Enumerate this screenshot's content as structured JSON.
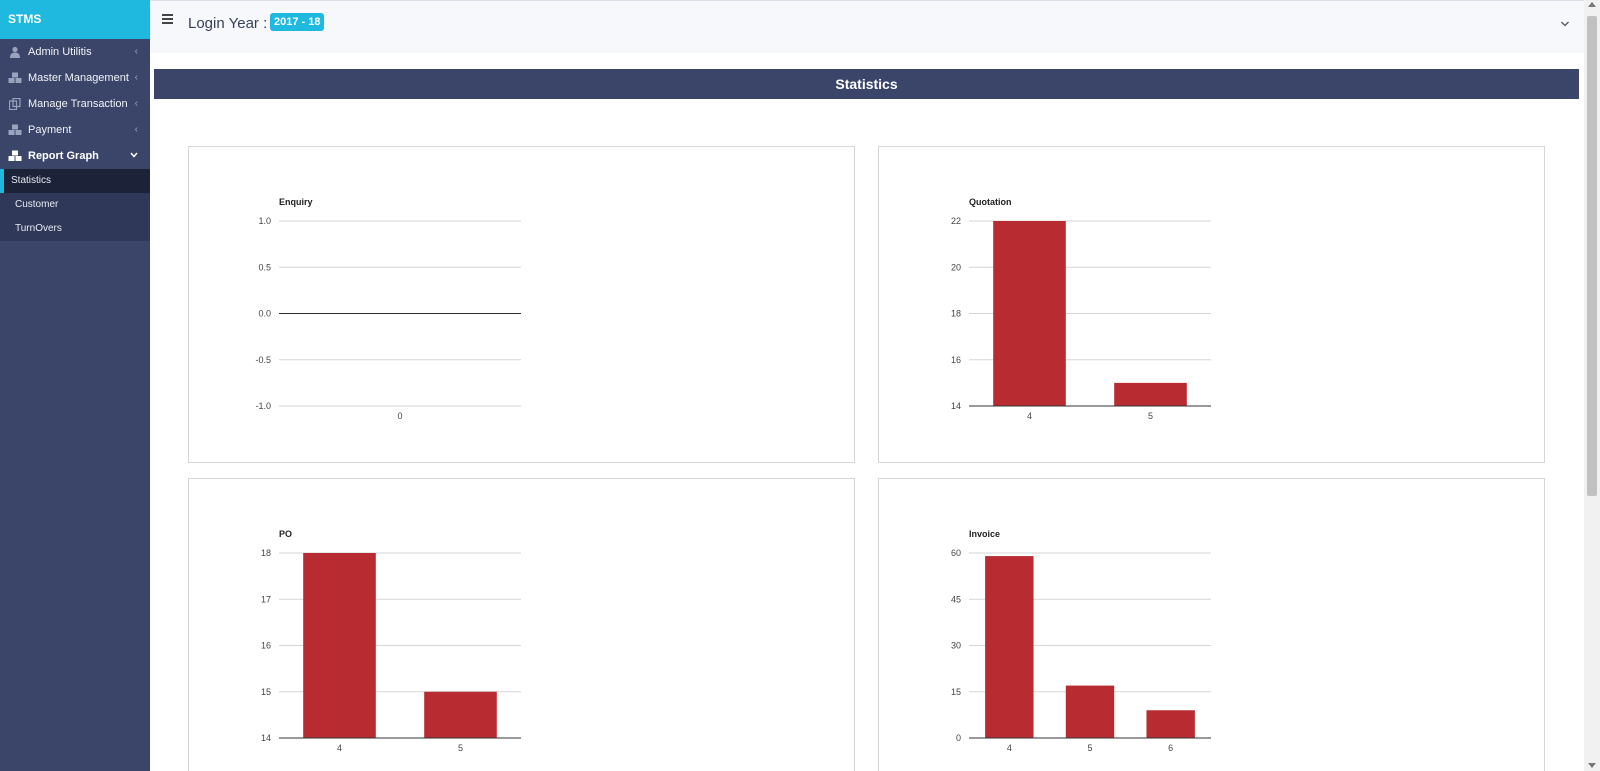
{
  "app": {
    "brand": "STMS"
  },
  "sidebar": {
    "items": [
      {
        "label": "Admin Utilitis",
        "icon": "user-icon",
        "chevron": "chevron-left-icon"
      },
      {
        "label": "Master Management",
        "icon": "cubes-icon",
        "chevron": "chevron-left-icon"
      },
      {
        "label": "Manage Transaction",
        "icon": "copy-icon",
        "chevron": "chevron-left-icon"
      },
      {
        "label": "Payment",
        "icon": "cubes-icon",
        "chevron": "chevron-left-icon"
      },
      {
        "label": "Report Graph",
        "icon": "cubes-icon",
        "chevron": "chevron-down-icon"
      }
    ],
    "submenu": [
      {
        "label": "Statistics",
        "active": true
      },
      {
        "label": "Customer",
        "active": false
      },
      {
        "label": "TurnOvers",
        "active": false
      }
    ]
  },
  "header": {
    "login_label": "Login Year :",
    "year_badge": "2017 - 18"
  },
  "main": {
    "section_title": "Statistics"
  },
  "colors": {
    "accent": "#1fb9e0",
    "sidebar_bg": "#3b4569",
    "bar": "#b82b31"
  },
  "chart_data": [
    {
      "type": "bar",
      "title": "Enquiry",
      "categories": [
        "0"
      ],
      "values": [
        0
      ],
      "yticks": [
        "1.0",
        "0.5",
        "0.0",
        "-0.5",
        "-1.0"
      ],
      "ylim": [
        -1.0,
        1.0
      ],
      "grid": true
    },
    {
      "type": "bar",
      "title": "Quotation",
      "categories": [
        "4",
        "5"
      ],
      "values": [
        22,
        15
      ],
      "yticks": [
        "22",
        "20",
        "18",
        "16",
        "14"
      ],
      "ylim": [
        14,
        22
      ],
      "grid": true
    },
    {
      "type": "bar",
      "title": "PO",
      "categories": [
        "4",
        "5"
      ],
      "values": [
        18,
        15
      ],
      "yticks": [
        "18",
        "17",
        "16",
        "15",
        "14"
      ],
      "ylim": [
        14,
        18
      ],
      "grid": true
    },
    {
      "type": "bar",
      "title": "Invoice",
      "categories": [
        "4",
        "5",
        "6"
      ],
      "values": [
        59,
        17,
        9
      ],
      "yticks": [
        "60",
        "45",
        "30",
        "15",
        "0"
      ],
      "ylim": [
        0,
        60
      ],
      "grid": true
    }
  ]
}
